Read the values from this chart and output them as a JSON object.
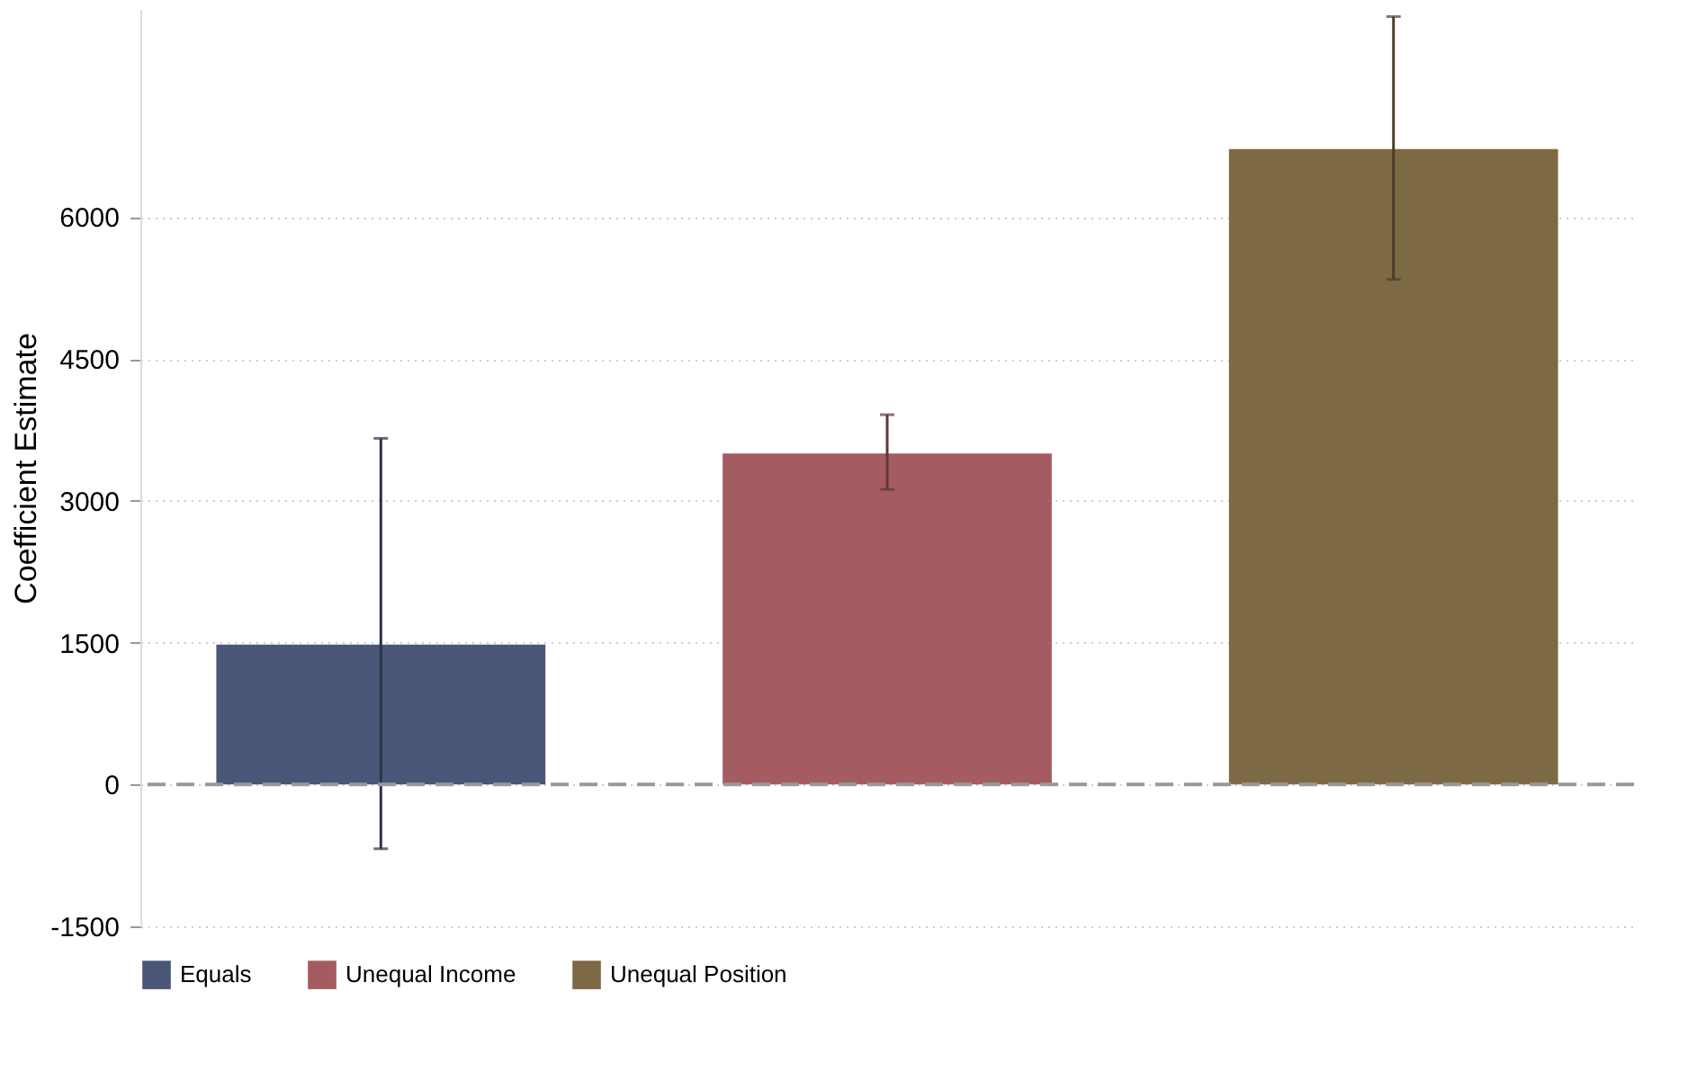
{
  "chart_data": {
    "type": "bar",
    "ylabel": "Coefficient Estimate",
    "categories": [
      null,
      null,
      null
    ],
    "series": [
      {
        "name": "Equals",
        "color": "#4a5677",
        "values": [
          1480,
          null,
          null
        ],
        "errors": [
          [
            -680,
            3660
          ],
          null,
          null
        ]
      },
      {
        "name": "Unequal Income",
        "color": "#a45c60",
        "values": [
          null,
          3500,
          null
        ],
        "errors": [
          null,
          [
            3120,
            3910
          ],
          null
        ]
      },
      {
        "name": "Unequal Position",
        "color": "#7d6a45",
        "values": [
          null,
          null,
          6720
        ],
        "errors": [
          null,
          null,
          [
            5340,
            8120
          ]
        ]
      }
    ],
    "ylim": [
      -1500,
      8200
    ],
    "yticks": [
      -1500,
      0,
      1500,
      3000,
      4500,
      6000
    ],
    "ref_lines": [
      {
        "axis": "y",
        "value": 0,
        "color": "#999999",
        "line_style": "dashed"
      }
    ],
    "grid": "y",
    "legend": "bottom",
    "tick_labels": "y"
  }
}
